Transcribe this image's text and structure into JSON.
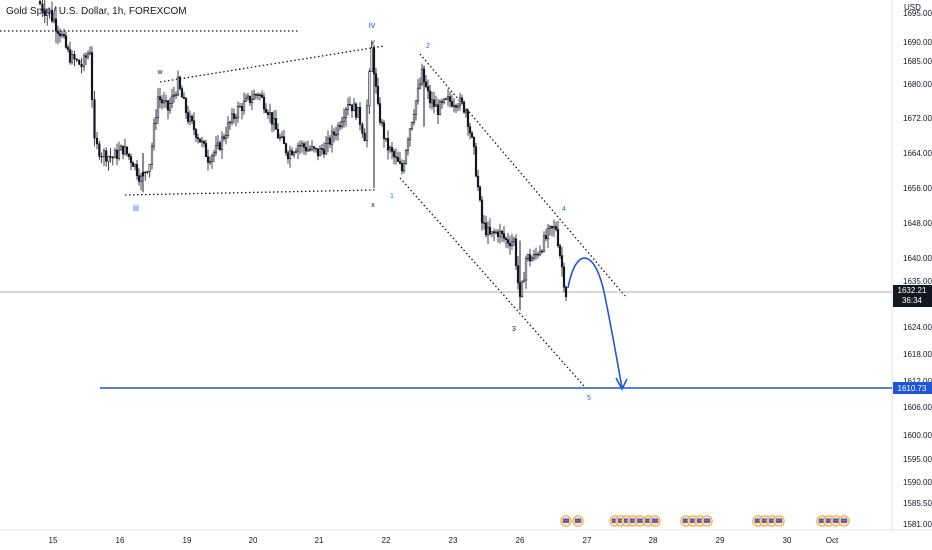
{
  "header": {
    "symbol_title": "Gold Spot / U.S. Dollar, 1h, FOREXCOM"
  },
  "axis": {
    "currency": "USD"
  },
  "chart_data": {
    "type": "candlestick",
    "title": "Gold Spot / U.S. Dollar, 1h, FOREXCOM",
    "ylabel": "USD",
    "y_ticks": [
      1695.0,
      1690.0,
      1685.0,
      1680.0,
      1672.0,
      1664.0,
      1656.0,
      1648.0,
      1640.0,
      1635.0,
      1624.0,
      1618.0,
      1612.0,
      1606.0,
      1600.0,
      1595.0,
      1590.0,
      1585.5,
      1581.0
    ],
    "x_ticks": [
      "15",
      "16",
      "19",
      "20",
      "21",
      "22",
      "23",
      "26",
      "27",
      "28",
      "29",
      "30",
      "Oct"
    ],
    "current_price": {
      "value": "1632.21",
      "countdown": "36:34",
      "color": "#131722"
    },
    "target_line": {
      "value": "1610.73",
      "color": "#1e56d8"
    },
    "wave_labels": [
      "iii",
      "iv",
      "w",
      "y",
      "x",
      "1",
      "2",
      "3",
      "4",
      "5"
    ],
    "accent_color": "#2962ff",
    "candle_up_color": "#131722",
    "candle_down_color": "#131722",
    "grid": false
  }
}
